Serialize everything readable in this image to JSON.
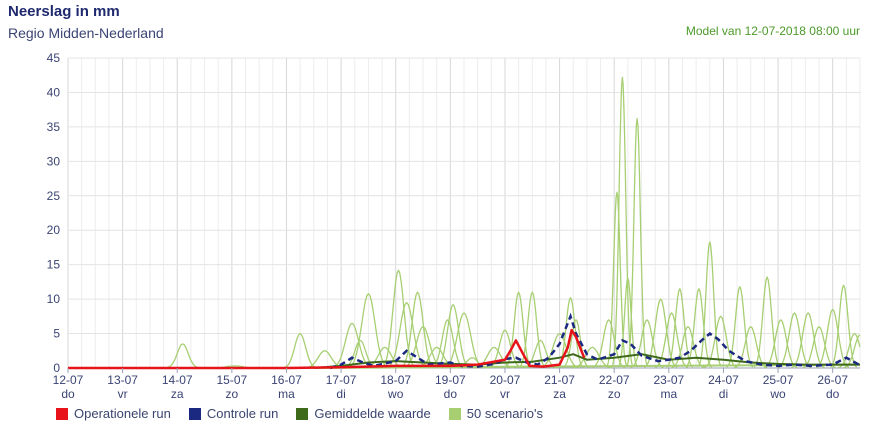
{
  "header": {
    "title": "Neerslag in mm",
    "subtitle": "Regio Midden-Nederland",
    "model": "Model van 12-07-2018 08:00 uur"
  },
  "colors": {
    "operational": "#e8121a",
    "control": "#1b2a80",
    "mean": "#3f6a1c",
    "scenario": "#a7cf72",
    "grid": "#e4e4e4"
  },
  "legend": [
    {
      "label": "Operationele run",
      "color": "#e8121a"
    },
    {
      "label": "Controle run",
      "color": "#1b2a80"
    },
    {
      "label": "Gemiddelde waarde",
      "color": "#3f6a1c"
    },
    {
      "label": "50 scenario's",
      "color": "#a7cf72"
    }
  ],
  "chart_data": {
    "type": "line",
    "title": "Neerslag in mm",
    "ylim": [
      0,
      45
    ],
    "yticks": [
      0,
      5,
      10,
      15,
      20,
      25,
      30,
      35,
      40,
      45
    ],
    "xlim": [
      0,
      14.5
    ],
    "days": [
      {
        "date": "12-07",
        "dow": "do"
      },
      {
        "date": "13-07",
        "dow": "vr"
      },
      {
        "date": "14-07",
        "dow": "za"
      },
      {
        "date": "15-07",
        "dow": "zo"
      },
      {
        "date": "16-07",
        "dow": "ma"
      },
      {
        "date": "17-07",
        "dow": "di"
      },
      {
        "date": "18-07",
        "dow": "wo"
      },
      {
        "date": "19-07",
        "dow": "do"
      },
      {
        "date": "20-07",
        "dow": "vr"
      },
      {
        "date": "21-07",
        "dow": "za"
      },
      {
        "date": "22-07",
        "dow": "zo"
      },
      {
        "date": "23-07",
        "dow": "ma"
      },
      {
        "date": "24-07",
        "dow": "di"
      },
      {
        "date": "25-07",
        "dow": "wo"
      },
      {
        "date": "26-07",
        "dow": "do"
      }
    ],
    "series": [
      {
        "name": "Operationele run",
        "kind": "operational",
        "points": [
          [
            0,
            0
          ],
          [
            4,
            0
          ],
          [
            5,
            0.1
          ],
          [
            6,
            0.3
          ],
          [
            7,
            0.3
          ],
          [
            7.5,
            0.5
          ],
          [
            8,
            1.2
          ],
          [
            8.1,
            2.5
          ],
          [
            8.2,
            4.0
          ],
          [
            8.3,
            2.5
          ],
          [
            8.45,
            0.3
          ],
          [
            8.7,
            0.2
          ],
          [
            9,
            0.5
          ],
          [
            9.15,
            3.0
          ],
          [
            9.22,
            5.5
          ],
          [
            9.3,
            4.5
          ],
          [
            9.4,
            2.5
          ],
          [
            9.45,
            1.5
          ]
        ]
      },
      {
        "name": "Controle run",
        "kind": "control",
        "points": [
          [
            4.8,
            0
          ],
          [
            5,
            0.5
          ],
          [
            5.2,
            1.5
          ],
          [
            5.4,
            0.8
          ],
          [
            5.6,
            0.3
          ],
          [
            6,
            1.0
          ],
          [
            6.2,
            2.5
          ],
          [
            6.4,
            1.5
          ],
          [
            6.6,
            0.5
          ],
          [
            7,
            0.8
          ],
          [
            7.2,
            0.3
          ],
          [
            7.5,
            0.2
          ],
          [
            7.8,
            0.6
          ],
          [
            8,
            1.3
          ],
          [
            8.2,
            1.5
          ],
          [
            8.4,
            0.8
          ],
          [
            8.6,
            0.5
          ],
          [
            8.8,
            1.5
          ],
          [
            9,
            3.5
          ],
          [
            9.1,
            5.5
          ],
          [
            9.2,
            7.5
          ],
          [
            9.3,
            5.0
          ],
          [
            9.5,
            2.0
          ],
          [
            9.7,
            1.2
          ],
          [
            10,
            2.0
          ],
          [
            10.15,
            4.0
          ],
          [
            10.3,
            3.5
          ],
          [
            10.5,
            1.8
          ],
          [
            10.8,
            1.0
          ],
          [
            11,
            1.2
          ],
          [
            11.2,
            1.5
          ],
          [
            11.4,
            2.5
          ],
          [
            11.6,
            4.0
          ],
          [
            11.75,
            5.0
          ],
          [
            11.9,
            4.2
          ],
          [
            12.1,
            2.5
          ],
          [
            12.4,
            1.0
          ],
          [
            12.7,
            0.5
          ],
          [
            13,
            0.3
          ],
          [
            13.3,
            0.5
          ],
          [
            13.6,
            0.3
          ],
          [
            14,
            0.5
          ],
          [
            14.25,
            1.5
          ],
          [
            14.5,
            0.4
          ]
        ]
      },
      {
        "name": "Gemiddelde waarde",
        "kind": "mean",
        "points": [
          [
            4.5,
            0
          ],
          [
            5,
            0.3
          ],
          [
            5.5,
            0.8
          ],
          [
            6,
            1.0
          ],
          [
            6.5,
            0.8
          ],
          [
            7,
            0.6
          ],
          [
            7.5,
            0.5
          ],
          [
            8,
            0.8
          ],
          [
            8.5,
            0.9
          ],
          [
            9,
            1.5
          ],
          [
            9.25,
            2.0
          ],
          [
            9.5,
            1.2
          ],
          [
            10,
            1.5
          ],
          [
            10.5,
            2.0
          ],
          [
            11,
            1.2
          ],
          [
            11.5,
            1.5
          ],
          [
            12,
            1.2
          ],
          [
            12.5,
            0.8
          ],
          [
            13,
            0.6
          ],
          [
            13.5,
            0.5
          ],
          [
            14,
            0.5
          ],
          [
            14.5,
            0.5
          ]
        ]
      },
      {
        "name": "50 scenario's",
        "kind": "scenario",
        "peaks": [
          [
            2.1,
            3.5,
            0.1
          ],
          [
            3.05,
            0.3,
            0.15
          ],
          [
            4.25,
            5.0,
            0.1
          ],
          [
            4.7,
            2.5,
            0.12
          ],
          [
            5.2,
            6.5,
            0.12
          ],
          [
            5.35,
            4.0,
            0.1
          ],
          [
            5.5,
            10.8,
            0.12
          ],
          [
            5.8,
            3.0,
            0.12
          ],
          [
            6.05,
            14.2,
            0.1
          ],
          [
            6.2,
            9.5,
            0.12
          ],
          [
            6.4,
            11.0,
            0.1
          ],
          [
            6.5,
            6.0,
            0.12
          ],
          [
            6.75,
            3.0,
            0.12
          ],
          [
            6.95,
            7.0,
            0.1
          ],
          [
            7.05,
            9.2,
            0.1
          ],
          [
            7.25,
            8.0,
            0.12
          ],
          [
            7.4,
            1.5,
            0.1
          ],
          [
            7.8,
            3.0,
            0.12
          ],
          [
            8.0,
            5.5,
            0.1
          ],
          [
            8.25,
            11.0,
            0.08
          ],
          [
            8.5,
            11.0,
            0.08
          ],
          [
            8.65,
            4.0,
            0.1
          ],
          [
            9.0,
            5.0,
            0.12
          ],
          [
            9.2,
            10.2,
            0.08
          ],
          [
            9.3,
            7.0,
            0.08
          ],
          [
            9.6,
            3.0,
            0.12
          ],
          [
            9.9,
            7.0,
            0.1
          ],
          [
            10.05,
            25.5,
            0.06
          ],
          [
            10.15,
            42.2,
            0.06
          ],
          [
            10.25,
            13.0,
            0.06
          ],
          [
            10.42,
            36.2,
            0.06
          ],
          [
            10.6,
            7.0,
            0.1
          ],
          [
            10.85,
            10.0,
            0.1
          ],
          [
            11.05,
            8.0,
            0.1
          ],
          [
            11.2,
            11.5,
            0.08
          ],
          [
            11.35,
            6.0,
            0.1
          ],
          [
            11.55,
            11.5,
            0.08
          ],
          [
            11.75,
            18.3,
            0.07
          ],
          [
            11.95,
            7.5,
            0.1
          ],
          [
            12.3,
            11.8,
            0.08
          ],
          [
            12.5,
            6.0,
            0.1
          ],
          [
            12.8,
            13.2,
            0.08
          ],
          [
            13.05,
            7.0,
            0.1
          ],
          [
            13.3,
            8.0,
            0.1
          ],
          [
            13.55,
            8.0,
            0.1
          ],
          [
            13.75,
            6.0,
            0.1
          ],
          [
            14.0,
            8.5,
            0.1
          ],
          [
            14.2,
            12.0,
            0.08
          ],
          [
            14.4,
            5.0,
            0.1
          ],
          [
            14.5,
            4.8,
            0.1
          ]
        ]
      }
    ]
  }
}
